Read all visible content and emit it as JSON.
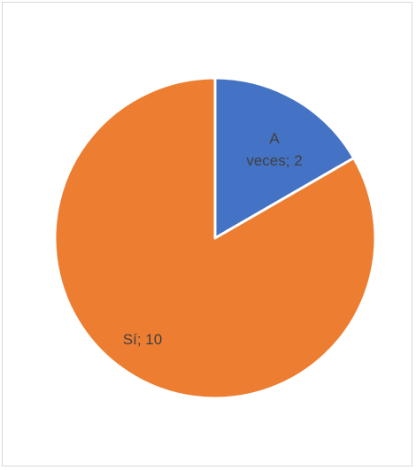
{
  "chart_data": {
    "type": "pie",
    "title": "",
    "legend": "none",
    "slices": [
      {
        "label": "A veces",
        "value": 2,
        "color": "#4472C4",
        "label_lines": [
          "A",
          "veces; 2"
        ]
      },
      {
        "label": "Sí",
        "value": 10,
        "color": "#ED7D31",
        "label_lines": [
          "Sí; 10"
        ]
      }
    ],
    "data_labels": [
      "A veces; 2",
      "Sí; 10"
    ]
  }
}
